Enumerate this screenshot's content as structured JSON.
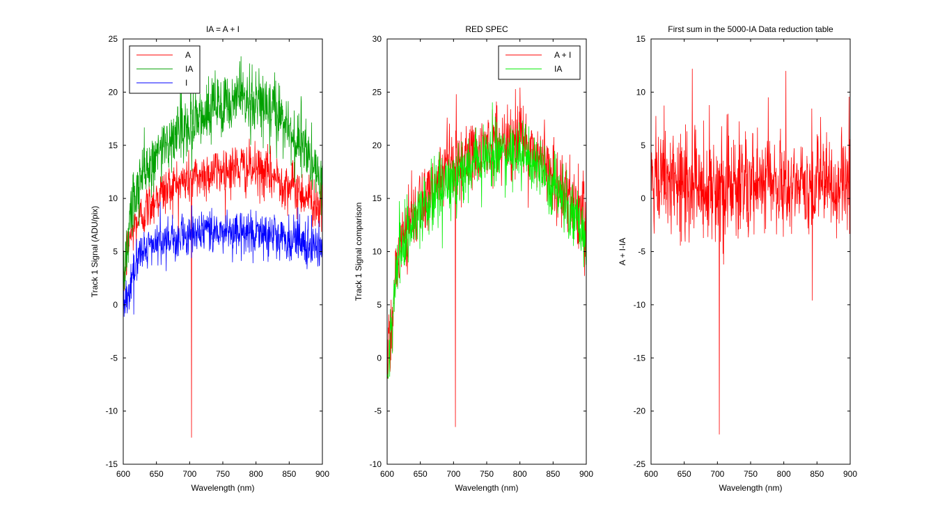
{
  "chart_data": [
    {
      "type": "line",
      "title": "IA = A + I",
      "xlabel": "Wavelength (nm)",
      "ylabel": "Track 1 Signal (ADU/pix)",
      "xlim": [
        600,
        900
      ],
      "ylim": [
        -15,
        25
      ],
      "xticks": [
        "600",
        "650",
        "700",
        "750",
        "800",
        "850",
        "900"
      ],
      "yticks": [
        "-15",
        "-10",
        "-5",
        "0",
        "5",
        "10",
        "15",
        "20",
        "25"
      ],
      "legend": "top-left",
      "grid": false,
      "series": [
        {
          "name": "A",
          "color": "#ff0000",
          "noise": 1.2,
          "x": [
            600,
            605,
            610,
            620,
            630,
            650,
            675,
            700,
            725,
            750,
            775,
            800,
            825,
            850,
            875,
            890,
            900
          ],
          "y": [
            2.0,
            4.5,
            6.5,
            7.8,
            8.6,
            10.2,
            11.2,
            11.8,
            12.3,
            12.7,
            12.9,
            12.6,
            12.1,
            11.3,
            10.3,
            9.6,
            9.0
          ],
          "spikes": [
            {
              "x": 703,
              "y": -12.5
            }
          ]
        },
        {
          "name": "IA",
          "color": "#00a000",
          "noise": 1.6,
          "x": [
            600,
            605,
            610,
            620,
            630,
            650,
            675,
            700,
            725,
            750,
            775,
            800,
            825,
            850,
            875,
            890,
            900
          ],
          "y": [
            2.0,
            5.0,
            8.0,
            10.5,
            12.0,
            14.2,
            15.8,
            17.0,
            18.0,
            18.8,
            19.3,
            19.2,
            18.2,
            16.6,
            14.5,
            12.8,
            11.5
          ],
          "spikes": []
        },
        {
          "name": "I",
          "color": "#0000ff",
          "noise": 1.1,
          "x": [
            600,
            605,
            610,
            620,
            630,
            650,
            675,
            700,
            725,
            750,
            775,
            800,
            825,
            850,
            875,
            890,
            900
          ],
          "y": [
            0.0,
            0.5,
            1.5,
            4.0,
            5.2,
            5.8,
            6.2,
            6.6,
            6.9,
            7.0,
            7.0,
            6.9,
            6.5,
            6.0,
            5.6,
            5.2,
            5.0
          ],
          "spikes": []
        }
      ]
    },
    {
      "type": "line",
      "title": "RED SPEC",
      "xlabel": "Wavelength (nm)",
      "ylabel": "Track 1 Signal comparison",
      "xlim": [
        600,
        900
      ],
      "ylim": [
        -10,
        30
      ],
      "xticks": [
        "600",
        "650",
        "700",
        "750",
        "800",
        "850",
        "900"
      ],
      "yticks": [
        "-10",
        "-5",
        "0",
        "5",
        "10",
        "15",
        "20",
        "25",
        "30"
      ],
      "legend": "top-right",
      "grid": false,
      "series": [
        {
          "name": "A + I",
          "color": "#ff0000",
          "noise": 1.8,
          "x": [
            600,
            605,
            610,
            615,
            620,
            630,
            650,
            675,
            700,
            725,
            750,
            775,
            800,
            825,
            850,
            875,
            890,
            900
          ],
          "y": [
            1.0,
            2.0,
            6.0,
            9.0,
            10.5,
            12.0,
            14.5,
            16.2,
            17.8,
            18.8,
            19.8,
            20.5,
            20.6,
            19.2,
            17.2,
            15.0,
            13.3,
            12.0
          ],
          "spikes": [
            {
              "x": 703,
              "y": -6.5
            },
            {
              "x": 704,
              "y": 24.8
            }
          ]
        },
        {
          "name": "IA",
          "color": "#00ee00",
          "noise": 1.5,
          "x": [
            600,
            605,
            610,
            615,
            620,
            630,
            650,
            675,
            700,
            725,
            750,
            775,
            800,
            825,
            850,
            875,
            890,
            900
          ],
          "y": [
            0.0,
            1.0,
            5.5,
            8.5,
            10.0,
            11.5,
            13.5,
            15.3,
            16.8,
            17.8,
            18.8,
            19.5,
            19.3,
            18.2,
            16.2,
            14.0,
            12.2,
            10.8
          ],
          "spikes": []
        }
      ]
    },
    {
      "type": "line",
      "title": "First sum in the 5000-IA Data reduction table",
      "xlabel": "Wavelength (nm)",
      "ylabel": "A + I-IA",
      "xlim": [
        600,
        900
      ],
      "ylim": [
        -25,
        15
      ],
      "xticks": [
        "600",
        "650",
        "700",
        "750",
        "800",
        "850",
        "900"
      ],
      "yticks": [
        "-25",
        "-20",
        "-15",
        "-10",
        "-5",
        "0",
        "5",
        "10",
        "15"
      ],
      "legend": "none",
      "grid": false,
      "series": [
        {
          "name": "",
          "color": "#ff0000",
          "noise": 2.6,
          "x": [
            600,
            650,
            700,
            750,
            800,
            850,
            900
          ],
          "y": [
            1.2,
            1.4,
            1.3,
            1.2,
            1.3,
            1.2,
            1.0
          ],
          "spikes": [
            {
              "x": 703,
              "y": -22.2
            },
            {
              "x": 662,
              "y": 12.2
            },
            {
              "x": 803,
              "y": 12.0
            },
            {
              "x": 843,
              "y": -9.6
            }
          ]
        }
      ]
    }
  ]
}
